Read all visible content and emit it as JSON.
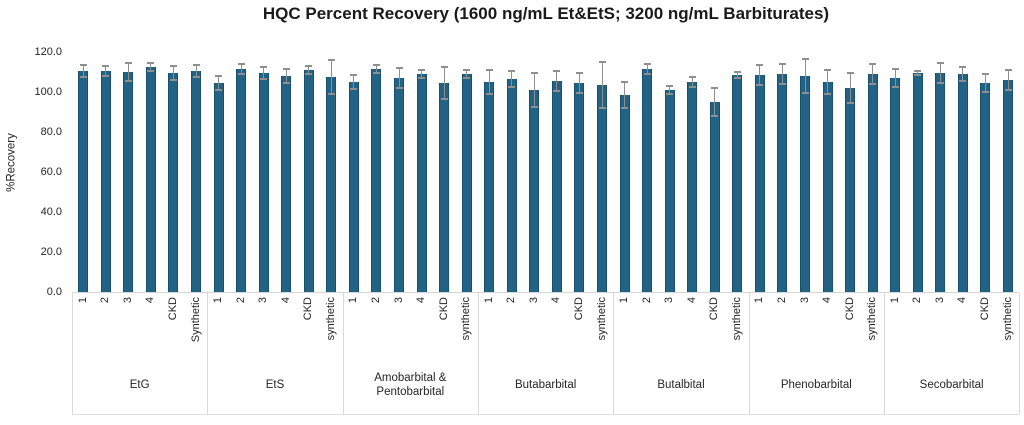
{
  "title": "HQC Percent Recovery (1600 ng/mL Et&EtS; 3200 ng/mL Barbiturates)",
  "chart_data": {
    "type": "bar",
    "title": "HQC Percent Recovery (1600 ng/mL Et&EtS; 3200 ng/mL Barbiturates)",
    "xlabel": "",
    "ylabel": "%Recovery",
    "ylim": [
      0,
      120
    ],
    "ytick_labels": [
      "0.0",
      "20.0",
      "40.0",
      "60.0",
      "80.0",
      "100.0",
      "120.0"
    ],
    "grid": false,
    "legend": "none",
    "error_bars": true,
    "bar_color": "#226385",
    "error_color": "#8f8f8f",
    "axis_color": "#d9d9d9",
    "groups": [
      {
        "label": "EtG",
        "categories": [
          "1",
          "2",
          "3",
          "4",
          "CKD",
          "Synthetic"
        ],
        "values": [
          110.5,
          110.5,
          110.0,
          112.5,
          109.5,
          110.5
        ],
        "errors": [
          3.0,
          2.5,
          4.5,
          2.0,
          3.5,
          3.0
        ]
      },
      {
        "label": "EtS",
        "categories": [
          "1",
          "2",
          "3",
          "4",
          "CKD",
          "synthetic"
        ],
        "values": [
          104.5,
          111.5,
          109.5,
          108.0,
          111.0,
          107.5
        ],
        "errors": [
          3.5,
          2.5,
          3.0,
          3.5,
          2.0,
          8.5
        ]
      },
      {
        "label": "Amobarbital & Pentobarbital",
        "categories": [
          "1",
          "2",
          "3",
          "4",
          "CKD",
          "synthetic"
        ],
        "values": [
          105.0,
          111.5,
          107.0,
          109.0,
          104.5,
          109.0
        ],
        "errors": [
          3.5,
          2.0,
          5.0,
          2.0,
          8.0,
          2.0
        ]
      },
      {
        "label": "Butabarbital",
        "categories": [
          "1",
          "2",
          "3",
          "4",
          "CKD",
          "synthetic"
        ],
        "values": [
          105.0,
          106.5,
          101.0,
          105.5,
          104.5,
          103.5
        ],
        "errors": [
          6.0,
          4.0,
          8.5,
          5.0,
          5.0,
          11.5
        ]
      },
      {
        "label": "Butalbital",
        "categories": [
          "1",
          "2",
          "3",
          "4",
          "CKD",
          "synthetic"
        ],
        "values": [
          98.5,
          111.5,
          101.0,
          105.0,
          95.0,
          108.5
        ],
        "errors": [
          6.5,
          2.5,
          2.0,
          2.5,
          7.0,
          1.5
        ]
      },
      {
        "label": "Phenobarbital",
        "categories": [
          "1",
          "2",
          "3",
          "4",
          "CKD",
          "synthetic"
        ],
        "values": [
          108.5,
          109.0,
          108.0,
          105.0,
          102.0,
          109.0
        ],
        "errors": [
          5.0,
          5.0,
          8.5,
          6.0,
          7.5,
          5.0
        ]
      },
      {
        "label": "Secobarbital",
        "categories": [
          "1",
          "2",
          "3",
          "4",
          "CKD",
          "synthetic"
        ],
        "values": [
          107.0,
          109.5,
          109.5,
          109.0,
          104.5,
          106.0
        ],
        "errors": [
          4.5,
          1.0,
          5.0,
          3.5,
          4.5,
          5.0
        ]
      }
    ]
  }
}
